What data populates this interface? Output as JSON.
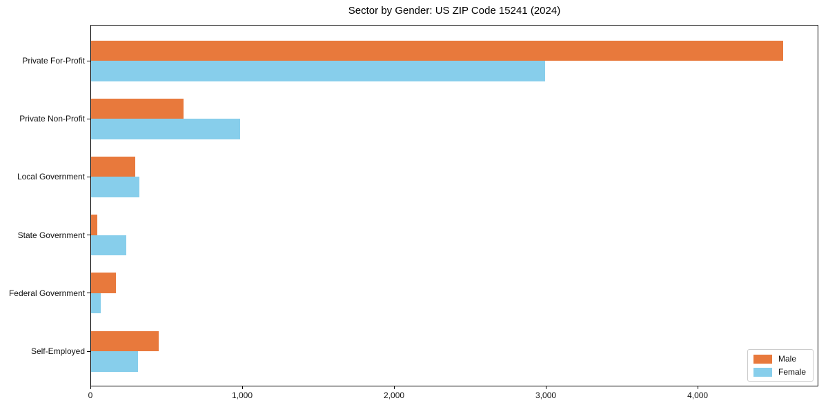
{
  "chart_data": {
    "type": "bar",
    "orientation": "horizontal",
    "title": "Sector by Gender: US ZIP Code 15241 (2024)",
    "xlabel": "",
    "ylabel": "",
    "categories": [
      "Private For-Profit",
      "Private Non-Profit",
      "Local Government",
      "State Government",
      "Federal Government",
      "Self-Employed"
    ],
    "series": [
      {
        "name": "Male",
        "color": "#E8793C",
        "values": [
          4560,
          610,
          290,
          40,
          165,
          445
        ]
      },
      {
        "name": "Female",
        "color": "#87CEEB",
        "values": [
          2990,
          980,
          320,
          230,
          65,
          310
        ]
      }
    ],
    "xlim": [
      0,
      4795
    ],
    "xticks": [
      {
        "value": 0,
        "label": "0"
      },
      {
        "value": 1000,
        "label": "1,000"
      },
      {
        "value": 2000,
        "label": "2,000"
      },
      {
        "value": 3000,
        "label": "3,000"
      },
      {
        "value": 4000,
        "label": "4,000"
      }
    ],
    "grid": false,
    "legend": {
      "position": "lower right",
      "entries": [
        {
          "label": "Male",
          "color": "#E8793C"
        },
        {
          "label": "Female",
          "color": "#87CEEB"
        }
      ]
    }
  }
}
